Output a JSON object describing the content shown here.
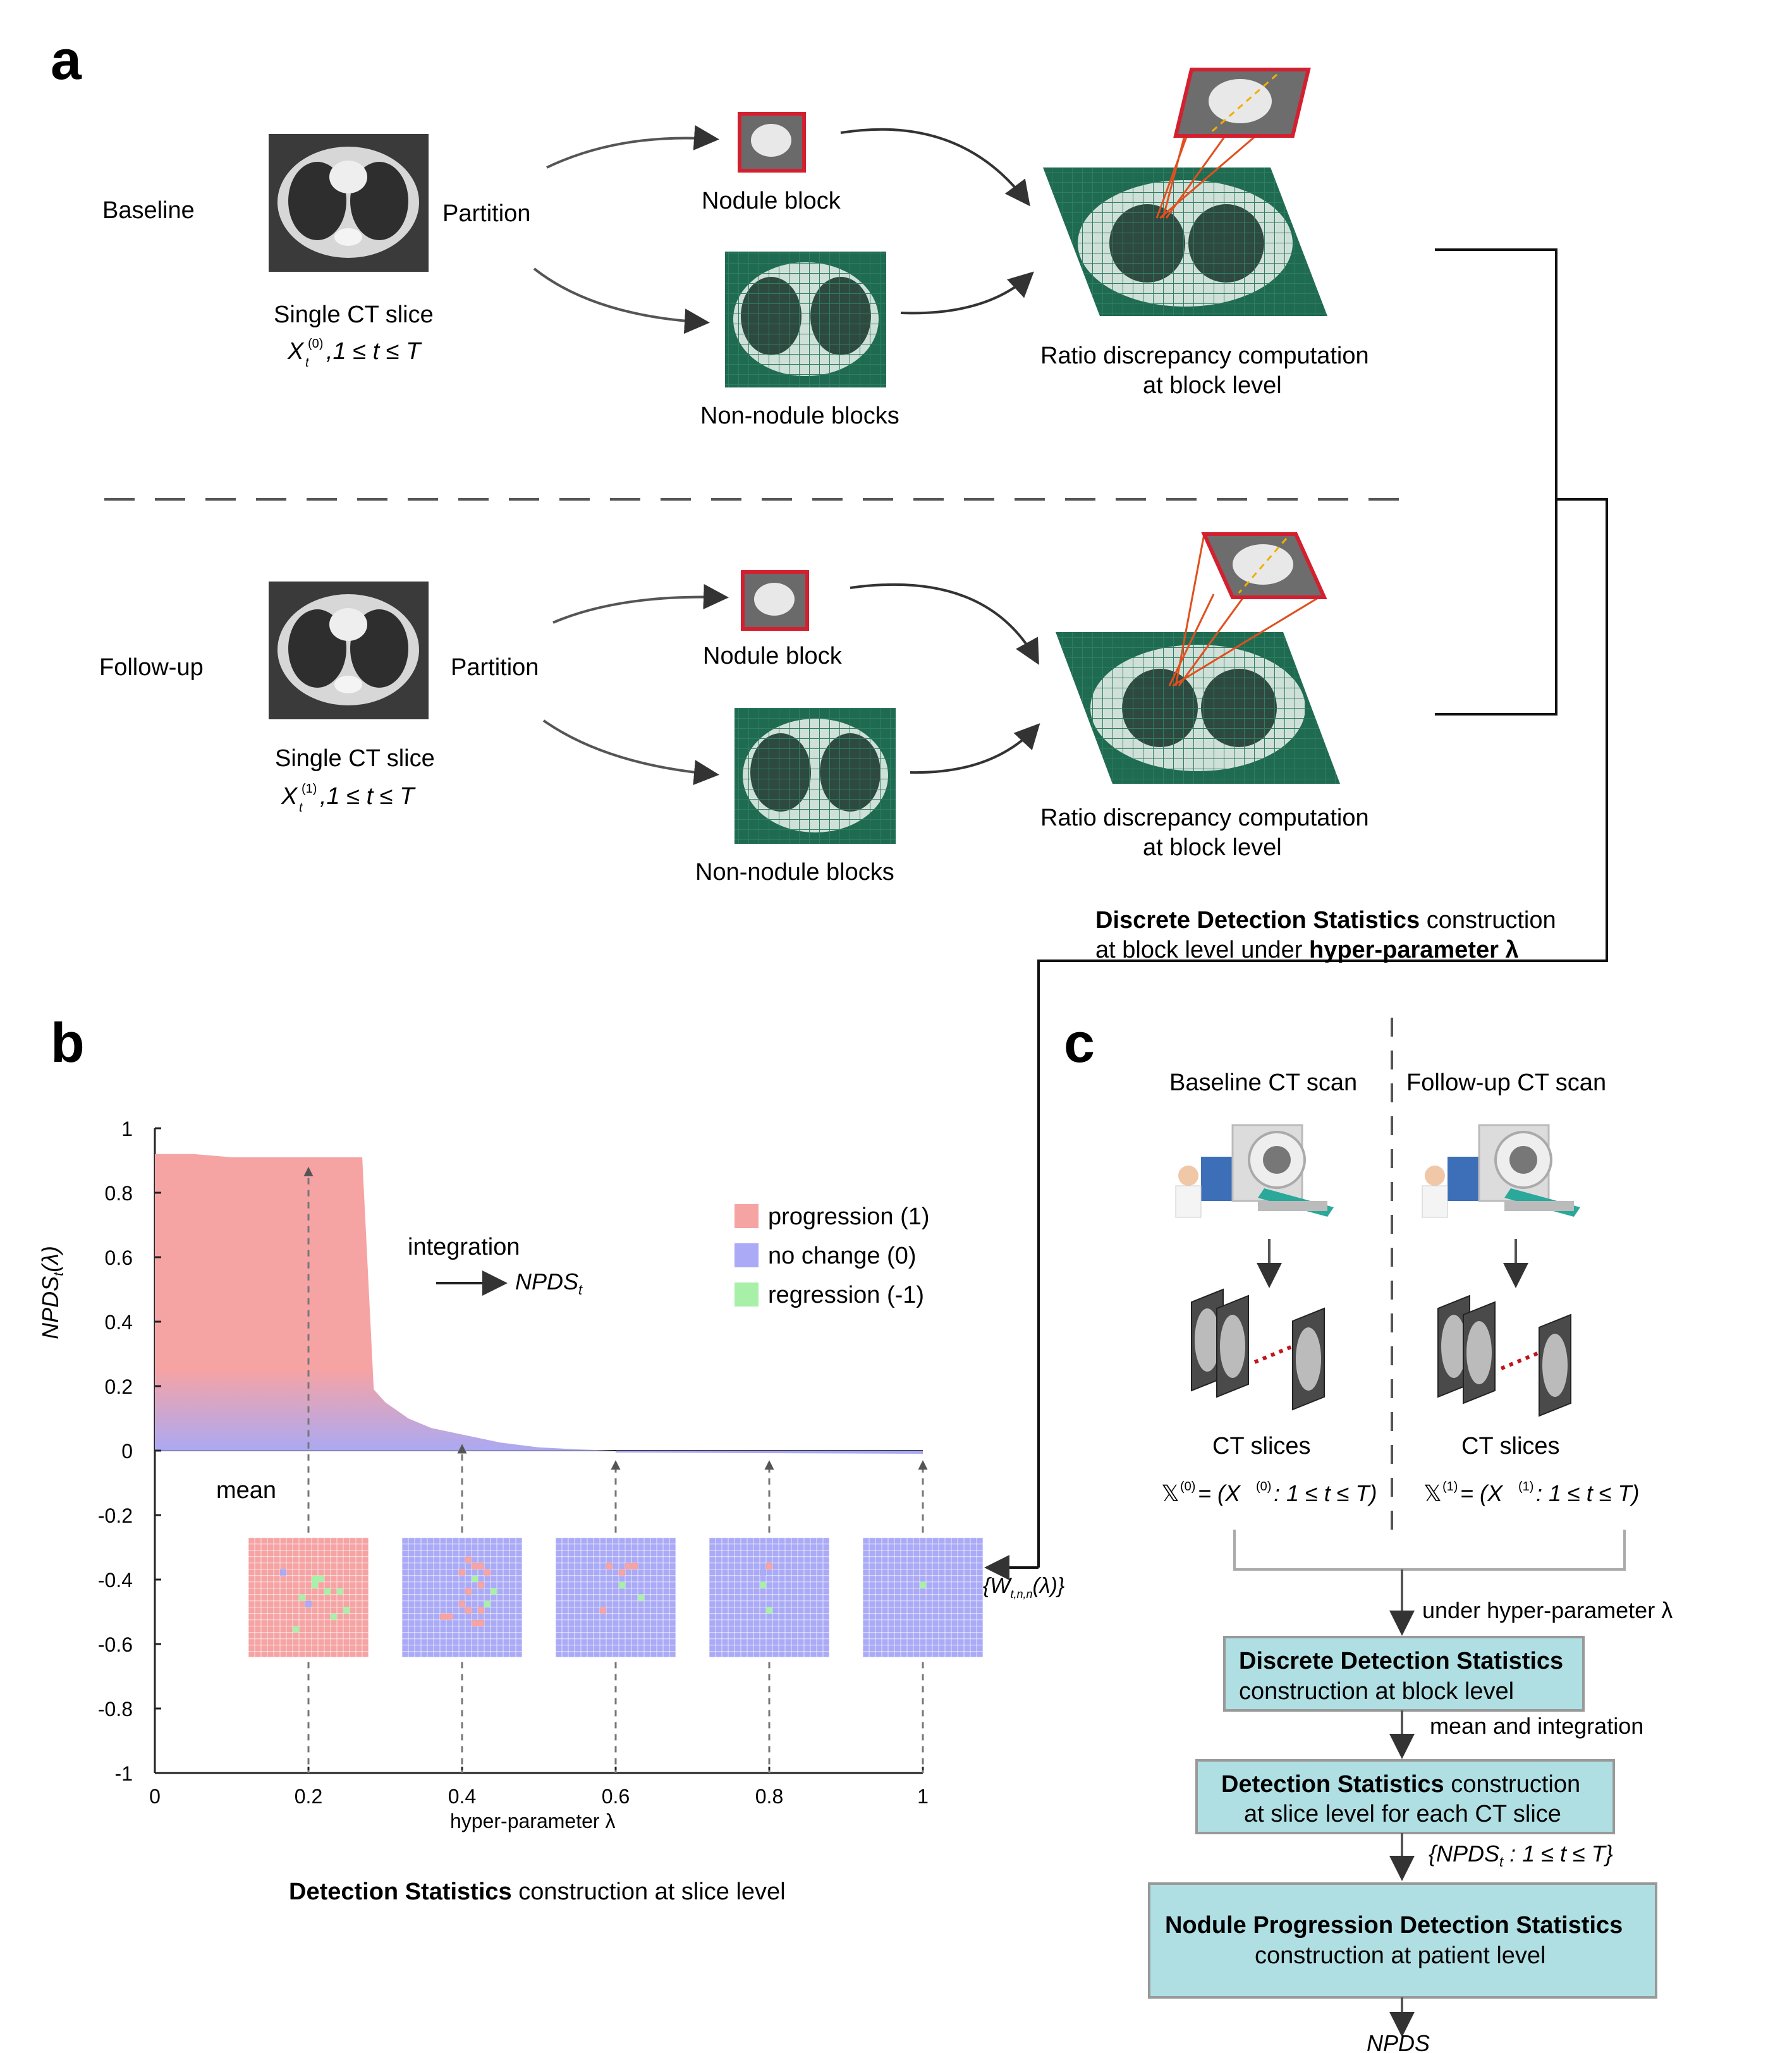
{
  "panel_a": {
    "letter": "a",
    "baseline": {
      "row_label": "Baseline",
      "partition": "Partition",
      "slice_label": "Single CT slice",
      "slice_var": "X",
      "slice_sup": "(0)",
      "slice_sub": "t",
      "slice_range": ",1 ≤ t ≤ T",
      "nodule_block": "Nodule block",
      "non_nodule": "Non-nodule blocks",
      "ratio_line1": "Ratio discrepancy computation",
      "ratio_line2": "at block level"
    },
    "followup": {
      "row_label": "Follow-up",
      "partition": "Partition",
      "slice_label": "Single CT slice",
      "slice_var": "X",
      "slice_sup": "(1)",
      "slice_sub": "t",
      "slice_range": ",1 ≤ t ≤ T",
      "nodule_block": "Nodule block",
      "non_nodule": "Non-nodule blocks",
      "ratio_line1": "Ratio discrepancy computation",
      "ratio_line2": "at block level"
    },
    "dds_bold": "Discrete Detection Statistics",
    "dds_rest": " construction",
    "dds_line2_pre": "at block level under ",
    "dds_line2_bold": "hyper-parameter λ"
  },
  "panel_b": {
    "letter": "b",
    "y_label": "NPDS",
    "y_label_sub": "t",
    "y_label_arg": "(λ)",
    "integration": "integration",
    "integration_target": "NPDS",
    "integration_target_sub": "t",
    "mean": "mean",
    "w_label_pre": "{W",
    "w_label_sub": "t,n,n",
    "w_label_post": "(λ)}",
    "caption_bold": "Detection Statistics",
    "caption_rest": " construction at slice level",
    "legend": [
      {
        "label": "progression (1)",
        "color": "#f5a3a3"
      },
      {
        "label": "no change (0)",
        "color": "#aaaaf6"
      },
      {
        "label": "regression (-1)",
        "color": "#a8f0a8"
      }
    ]
  },
  "panel_c": {
    "letter": "c",
    "baseline_scan": "Baseline CT scan",
    "followup_scan": "Follow-up CT scan",
    "ct_slices_left": "CT slices",
    "ct_slices_right": "CT slices",
    "set_left_sup": "(0)",
    "set_right_sup": "(1)",
    "set_body": " = (X",
    "set_range": ": 1 ≤ t ≤ T)",
    "under_hp": "under hyper-parameter λ",
    "box1_bold": "Discrete Detection Statistics",
    "box1_rest": "construction at block level",
    "mean_int": "mean and integration",
    "box2_bold": "Detection Statistics",
    "box2_rest1": " construction",
    "box2_rest2": "at slice level for each CT slice",
    "npds_set": "{NPDS",
    "npds_set_range": " : 1 ≤ t ≤ T}",
    "box3_bold": "Nodule Progression Detection Statistics",
    "box3_rest": "construction at patient level",
    "final": "NPDS",
    "box_color": "#b0dfe3"
  },
  "chart_data": {
    "type": "area",
    "title": "",
    "xlabel": "hyper-parameter λ",
    "ylabel": "NPDSt(λ)",
    "xlim": [
      0,
      1
    ],
    "ylim": [
      -1,
      1
    ],
    "x_ticks": [
      "0",
      "0.2",
      "0.4",
      "0.6",
      "0.8",
      "1"
    ],
    "y_ticks": [
      "1",
      "0.8",
      "0.6",
      "0.4",
      "0.2",
      "0",
      "-0.2",
      "-0.4",
      "-0.6",
      "-0.8",
      "-1"
    ],
    "series": [
      {
        "x": [
          0,
          0.05,
          0.1,
          0.15,
          0.2,
          0.25,
          0.27,
          0.285,
          0.3,
          0.33,
          0.36,
          0.4,
          0.45,
          0.5,
          0.55,
          0.6,
          0.65,
          0.7,
          0.75,
          0.8,
          0.85,
          0.9,
          0.95,
          1.0
        ],
        "values": [
          0.92,
          0.92,
          0.91,
          0.91,
          0.91,
          0.91,
          0.91,
          0.19,
          0.15,
          0.1,
          0.07,
          0.05,
          0.025,
          0.01,
          0.004,
          0.0,
          0.0,
          -0.003,
          -0.004,
          -0.005,
          -0.005,
          -0.006,
          -0.006,
          -0.007
        ]
      }
    ],
    "grid": false,
    "legend_position": "right"
  }
}
